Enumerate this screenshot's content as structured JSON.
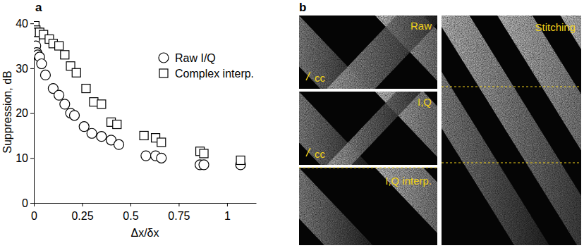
{
  "chart_data": {
    "type": "scatter",
    "x_label": "Δx/δx",
    "y_label": "Suppression, dB",
    "xlim": [
      0,
      1.15
    ],
    "ylim": [
      0,
      40.5
    ],
    "xticks": [
      0,
      0.25,
      0.5,
      0.75,
      1
    ],
    "yticks": [
      0,
      10,
      20,
      30,
      40
    ],
    "legend": "upper right",
    "grid": false,
    "series": [
      {
        "name": "Raw I/Q",
        "marker": "circle",
        "color": "#000000",
        "x": [
          0.005,
          0.01,
          0.015,
          0.02,
          0.03,
          0.04,
          0.06,
          0.1,
          0.13,
          0.16,
          0.19,
          0.21,
          0.26,
          0.3,
          0.35,
          0.4,
          0.44,
          0.58,
          0.63,
          0.66,
          0.86,
          0.88,
          1.07
        ],
        "values": [
          36.5,
          35,
          33.5,
          33,
          32.5,
          31,
          28.5,
          25.5,
          24,
          22,
          20,
          19.5,
          17,
          15.5,
          14.8,
          14,
          13,
          10.5,
          10.5,
          10,
          8.5,
          8.5,
          8.5
        ]
      },
      {
        "name": "Complex interp.",
        "marker": "square",
        "color": "#000000",
        "x": [
          0.005,
          0.01,
          0.02,
          0.03,
          0.05,
          0.08,
          0.1,
          0.13,
          0.16,
          0.19,
          0.22,
          0.27,
          0.31,
          0.35,
          0.4,
          0.43,
          0.57,
          0.63,
          0.66,
          0.86,
          0.88,
          1.07
        ],
        "values": [
          39.5,
          38.5,
          38,
          38,
          37.5,
          36.5,
          35.5,
          35,
          33,
          30.5,
          29,
          25.5,
          22.5,
          22,
          18,
          17.5,
          15,
          14.5,
          13.5,
          11.5,
          11,
          9.5
        ]
      }
    ]
  },
  "panel_labels": [
    "a",
    "b"
  ],
  "images": [
    {
      "label": "Raw",
      "annotation": "cc"
    },
    {
      "label": "I,Q",
      "annotation": "cc"
    },
    {
      "label": "I,Q interp."
    },
    {
      "label": "Stitching"
    }
  ]
}
